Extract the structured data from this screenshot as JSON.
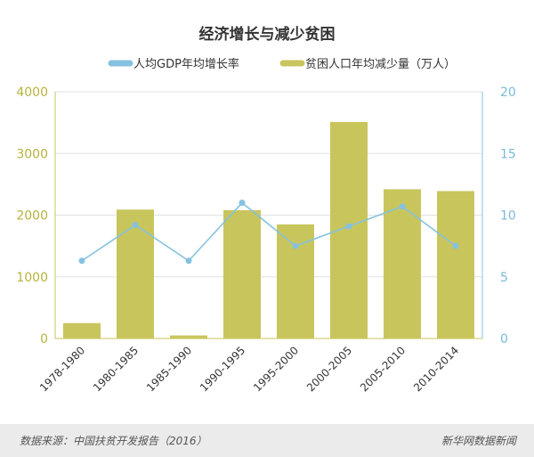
{
  "chart_data": {
    "type": "bar",
    "title": "经济增长与减少贫困",
    "categories": [
      "1978-1980",
      "1980-1985",
      "1985-1990",
      "1990-1995",
      "1995-2000",
      "2000-2005",
      "2005-2010",
      "2010-2014"
    ],
    "series": [
      {
        "name": "贫困人口年均减少量（万人）",
        "type": "bar",
        "axis": "left",
        "color": "#c8c55d",
        "values": [
          250,
          2090,
          50,
          2080,
          1850,
          3510,
          2420,
          2390
        ]
      },
      {
        "name": "人均GDP年均增长率",
        "type": "line",
        "axis": "right",
        "color": "#86c2df",
        "values": [
          6.3,
          9.2,
          6.3,
          11.0,
          7.5,
          9.1,
          10.7,
          7.5
        ]
      }
    ],
    "y_left": {
      "min": 0,
      "max": 4000,
      "ticks": [
        0,
        1000,
        2000,
        3000,
        4000
      ]
    },
    "y_right": {
      "min": 0,
      "max": 20,
      "ticks": [
        0,
        5,
        10,
        15,
        20
      ]
    },
    "grid": true,
    "legend_position": "top"
  },
  "footer": {
    "source": "数据来源：中国扶贫开发报告（2016）",
    "brand": "新华网数据新闻"
  }
}
